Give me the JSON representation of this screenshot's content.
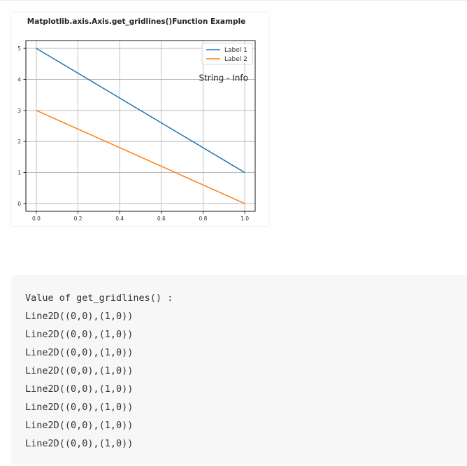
{
  "chart_data": {
    "type": "line",
    "title": "Matplotlib.axis.Axis.get_gridlines()Function Example",
    "xlabel": "",
    "ylabel": "",
    "xlim": [
      -0.05,
      1.05
    ],
    "ylim": [
      -0.25,
      5.25
    ],
    "xticks": [
      "0.0",
      "0.2",
      "0.4",
      "0.6",
      "0.8",
      "1.0"
    ],
    "yticks": [
      "0",
      "1",
      "2",
      "3",
      "4",
      "5"
    ],
    "grid": true,
    "legend_position": "upper-right",
    "series": [
      {
        "name": "Label 1",
        "color": "#1f77b4",
        "x": [
          0,
          1
        ],
        "y": [
          5,
          1
        ]
      },
      {
        "name": "Label 2",
        "color": "#ff7f0e",
        "x": [
          0,
          1
        ],
        "y": [
          3,
          0
        ]
      }
    ],
    "annotation": {
      "text": "String - Info",
      "x": 0.78,
      "y": 3.95
    }
  },
  "output": {
    "lines": [
      "Value of get_gridlines() :",
      "Line2D((0,0),(1,0))",
      "Line2D((0,0),(1,0))",
      "Line2D((0,0),(1,0))",
      "Line2D((0,0),(1,0))",
      "Line2D((0,0),(1,0))",
      "Line2D((0,0),(1,0))",
      "Line2D((0,0),(1,0))",
      "Line2D((0,0),(1,0))"
    ]
  }
}
